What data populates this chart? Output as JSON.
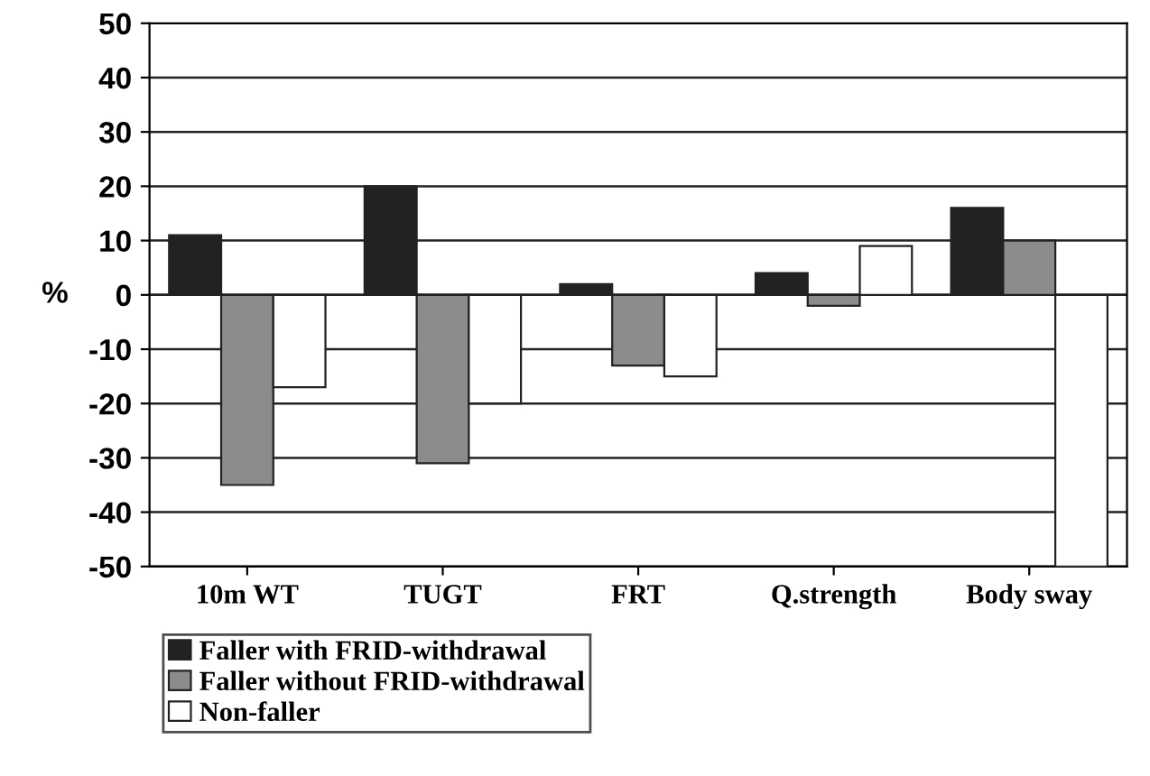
{
  "chart_data": {
    "type": "bar",
    "ylabel": "%",
    "categories": [
      "10m WT",
      "TUGT",
      "FRT",
      "Q.strength",
      "Body sway"
    ],
    "series": [
      {
        "name": "Faller with FRID-withdrawal",
        "color": "#222222",
        "values": [
          11,
          20,
          2,
          4,
          16
        ]
      },
      {
        "name": "Faller without FRID-withdrawal",
        "color": "#8c8c8c",
        "values": [
          -35,
          -31,
          -13,
          -2,
          10
        ]
      },
      {
        "name": "Non-faller",
        "color": "#ffffff",
        "values": [
          -17,
          -20,
          -15,
          9,
          -50
        ]
      }
    ],
    "ylim": [
      -50,
      50
    ],
    "yticks": [
      50,
      40,
      30,
      20,
      10,
      0,
      -10,
      -20,
      -30,
      -40,
      -50
    ],
    "grid": "y",
    "legend": "bottom left"
  }
}
